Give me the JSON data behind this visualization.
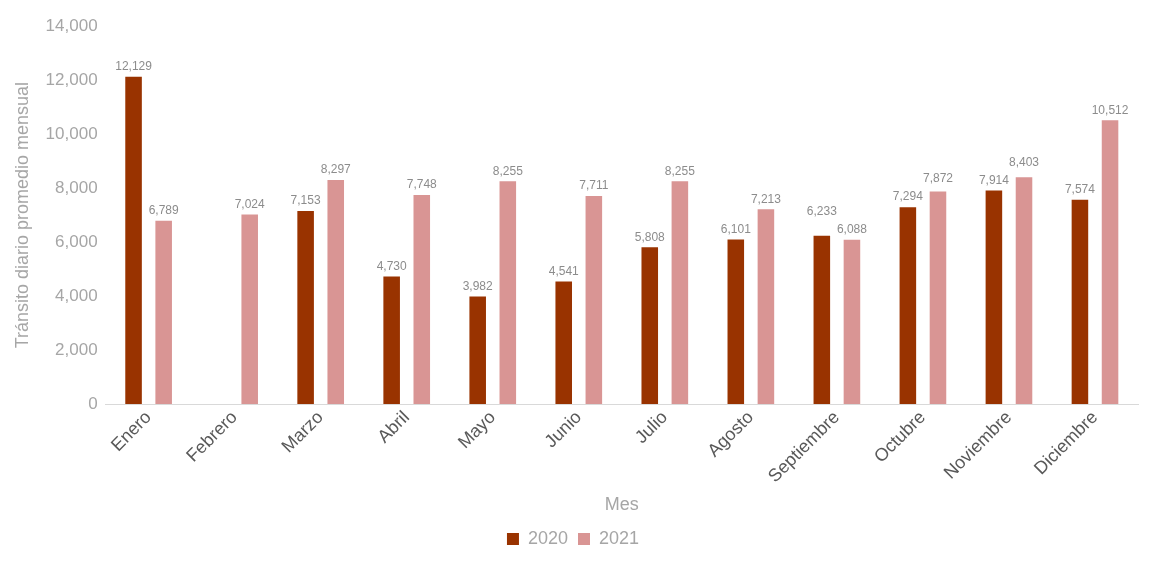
{
  "chart_data": {
    "type": "bar",
    "xlabel": "Mes",
    "ylabel": "Tránsito diario promedio mensual",
    "categories": [
      "Enero",
      "Febrero",
      "Marzo",
      "Abril",
      "Mayo",
      "Junio",
      "Julio",
      "Agosto",
      "Septiembre",
      "Octubre",
      "Noviembre",
      "Diciembre"
    ],
    "series": [
      {
        "name": "2020",
        "color": "#993300",
        "values": [
          12129,
          null,
          7153,
          4730,
          3982,
          4541,
          5808,
          6101,
          6233,
          7294,
          7914,
          7574
        ],
        "value_labels": [
          "12,129",
          null,
          "7,153",
          "4,730",
          "3,982",
          "4,541",
          "5,808",
          "6,101",
          "6,233",
          "7,294",
          "7,914",
          "7,574"
        ]
      },
      {
        "name": "2021",
        "color": "#d99594",
        "values": [
          6789,
          7024,
          8297,
          7748,
          8255,
          7711,
          8255,
          7213,
          6088,
          7872,
          8403,
          10512
        ],
        "value_labels": [
          "6,789",
          "7,024",
          "8,297",
          "7,748",
          "8,255",
          "7,711",
          "8,255",
          "7,213",
          "6,088",
          "7,872",
          "8,403",
          "10,512"
        ]
      }
    ],
    "ylim": [
      0,
      14000
    ],
    "yticks": [
      0,
      {
        "value": 2000,
        "label": "2,000"
      },
      {
        "value": 4000,
        "label": "4,000"
      },
      {
        "value": 6000,
        "label": "6,000"
      },
      {
        "value": 8000,
        "label": "8,000"
      },
      {
        "value": 10000,
        "label": "10,000"
      },
      {
        "value": 12000,
        "label": "12,000"
      },
      {
        "value": 14000,
        "label": "14,000"
      }
    ],
    "grid": false,
    "legend": "bottom"
  }
}
